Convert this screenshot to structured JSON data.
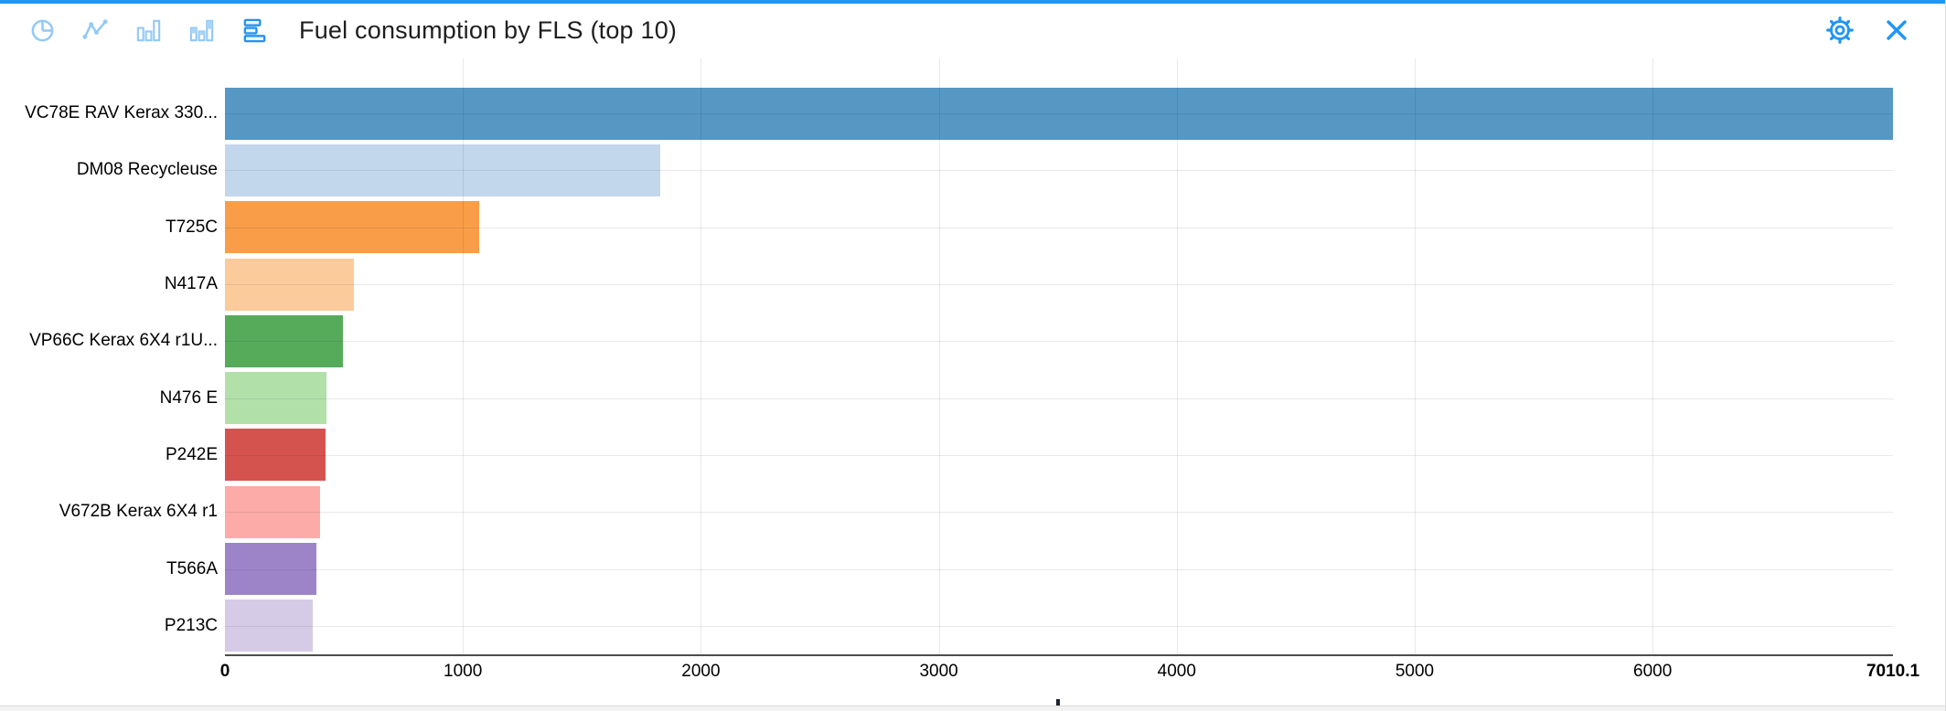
{
  "header": {
    "title": "Fuel consumption by FLS (top 10)",
    "tools": [
      {
        "name": "pie-chart",
        "active": false
      },
      {
        "name": "line-chart",
        "active": false
      },
      {
        "name": "column-chart",
        "active": false
      },
      {
        "name": "stacked-column-chart",
        "active": false
      },
      {
        "name": "horizontal-bar-chart",
        "active": true
      }
    ],
    "action_icons": [
      "gear-icon",
      "close-icon"
    ]
  },
  "colors": {
    "accent": "#2196f3",
    "icon_inactive": "#93c9f6",
    "icon_active": "#2492f0",
    "grid": "rgba(0,0,0,0.085)",
    "axis": "#4d4d4d"
  },
  "chart_data": {
    "type": "bar",
    "orientation": "horizontal",
    "title": "Fuel consumption by FLS (top 10)",
    "categories": [
      "VC78E RAV Kerax 330...",
      "DM08 Recycleuse",
      "T725C",
      "N417A",
      "VP66C Kerax 6X4 r1U...",
      "N476 E",
      "P242E",
      "V672B Kerax 6X4 r1",
      "T566A",
      "P213C"
    ],
    "values": [
      7010.1,
      1830,
      1070,
      540,
      497,
      427,
      422,
      400,
      384,
      369
    ],
    "bar_colors": [
      "#5697c4",
      "#c3d7ec",
      "#f99d48",
      "#fccb9b",
      "#56ab5b",
      "#b1e0a9",
      "#d5534f",
      "#fcaba8",
      "#9d84c9",
      "#d6cbe6"
    ],
    "xlim": [
      0,
      7010.1
    ],
    "xticks": [
      {
        "v": 0,
        "label": "0",
        "bold": true
      },
      {
        "v": 1000,
        "label": "1000",
        "bold": false
      },
      {
        "v": 2000,
        "label": "2000",
        "bold": false
      },
      {
        "v": 3000,
        "label": "3000",
        "bold": false
      },
      {
        "v": 4000,
        "label": "4000",
        "bold": false
      },
      {
        "v": 5000,
        "label": "5000",
        "bold": false
      },
      {
        "v": 6000,
        "label": "6000",
        "bold": false
      },
      {
        "v": 7010.1,
        "label": "7010.1",
        "bold": true
      }
    ],
    "grid": true,
    "legend": "none"
  }
}
